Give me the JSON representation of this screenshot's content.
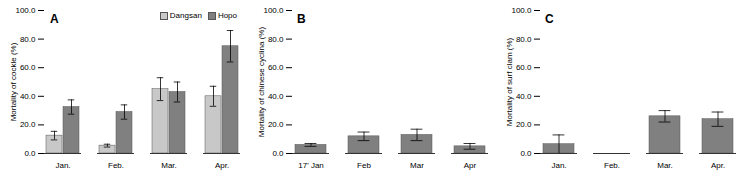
{
  "chart_data": [
    {
      "type": "bar",
      "title": "A",
      "categories": [
        "Jan.",
        "Feb.",
        "Mar.",
        "Apr."
      ],
      "series": [
        {
          "name": "Dangsan",
          "color": "#c8c8c8",
          "values": [
            12.5,
            5.5,
            45,
            40
          ],
          "errors": [
            3,
            1,
            8,
            7
          ]
        },
        {
          "name": "Hopo",
          "color": "#808080",
          "values": [
            32.5,
            29,
            43,
            75
          ],
          "errors": [
            5,
            5,
            7,
            11
          ]
        }
      ],
      "ylabel": "Mortality of cockle (%)",
      "ylim": [
        0,
        100
      ],
      "yticks": [
        {
          "value": 0,
          "label": "0.0"
        },
        {
          "value": 20,
          "label": "20.0"
        },
        {
          "value": 40,
          "label": "40.0"
        },
        {
          "value": 60,
          "label": "60.0"
        },
        {
          "value": 80,
          "label": "80.0"
        },
        {
          "value": 100,
          "label": "100.0"
        }
      ],
      "legend": "top-right",
      "grid": false
    },
    {
      "type": "bar",
      "title": "B",
      "categories": [
        "17' Jan",
        "Feb",
        "Mar",
        "Apr"
      ],
      "values": [
        6,
        12,
        13,
        5
      ],
      "errors": [
        1,
        3,
        4,
        2
      ],
      "color": "#808080",
      "ylabel": "Mortality of chinese cyclina (%)",
      "ylim": [
        0,
        100
      ],
      "yticks": [
        {
          "value": 0,
          "label": "0.0"
        },
        {
          "value": 20,
          "label": "20.0"
        },
        {
          "value": 40,
          "label": "40.0"
        },
        {
          "value": 60,
          "label": "60.0"
        },
        {
          "value": 80,
          "label": "80.0"
        },
        {
          "value": 100,
          "label": "100.0"
        }
      ],
      "grid": false
    },
    {
      "type": "bar",
      "title": "C",
      "categories": [
        "Jan.",
        "Feb.",
        "Mar.",
        "Apr."
      ],
      "values": [
        6.5,
        0,
        26,
        24
      ],
      "errors": [
        6.5,
        0,
        4,
        5
      ],
      "color": "#808080",
      "ylabel": "Mortality of surf clam (%)",
      "ylim": [
        0,
        100
      ],
      "yticks": [
        {
          "value": 0,
          "label": "0.0"
        },
        {
          "value": 20,
          "label": "20.0"
        },
        {
          "value": 40,
          "label": "40.0"
        },
        {
          "value": 60,
          "label": "60.0"
        },
        {
          "value": 80,
          "label": "80.0"
        },
        {
          "value": 100,
          "label": "100.0"
        }
      ],
      "grid": false
    }
  ]
}
